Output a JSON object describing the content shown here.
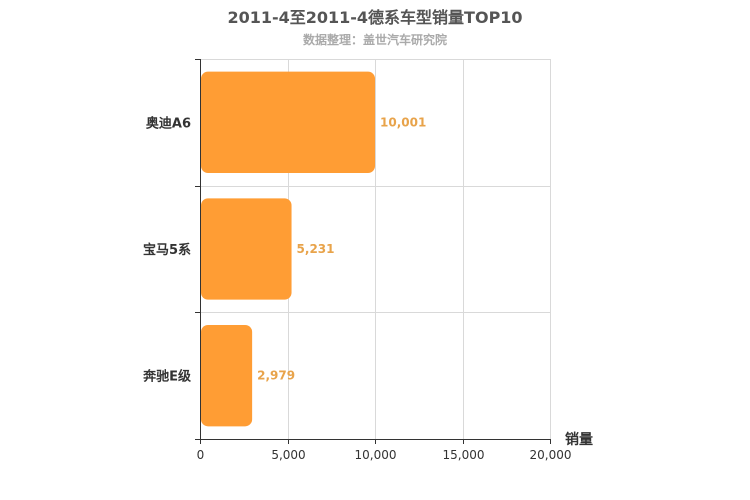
{
  "title": "2011-4至2011-4德系车型销量TOP10",
  "subtitle": "数据整理：盖世汽车研究院",
  "colors": {
    "bar": "#ff9d34",
    "data_label": "#e8a34a",
    "grid": "#d9d9d9",
    "axis": "#333333"
  },
  "chart_data": {
    "type": "bar",
    "orientation": "horizontal",
    "title": "2011-4至2011-4德系车型销量TOP10",
    "subtitle": "数据整理：盖世汽车研究院",
    "categories": [
      "奥迪A6",
      "宝马5系",
      "奔驰E级"
    ],
    "values": [
      10001,
      5231,
      2979
    ],
    "value_labels": [
      "10,001",
      "5,231",
      "2,979"
    ],
    "xlabel": "销量",
    "ylabel": "",
    "xlim": [
      0,
      20000
    ],
    "xticks": [
      0,
      5000,
      10000,
      15000,
      20000
    ],
    "xtick_labels": [
      "0",
      "5,000",
      "10,000",
      "15,000",
      "20,000"
    ],
    "grid": true,
    "legend": "none"
  }
}
